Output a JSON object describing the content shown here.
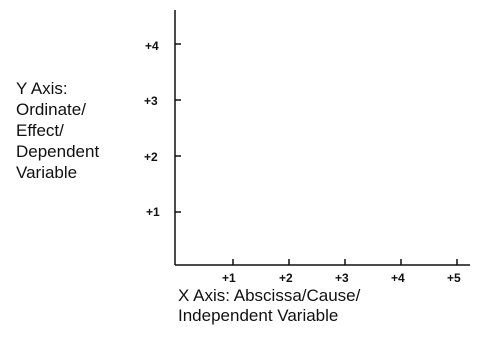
{
  "y_axis": {
    "label_lines": [
      "Y Axis:",
      "Ordinate/",
      "Effect/",
      "Dependent",
      "Variable"
    ],
    "ticks": [
      "+1",
      "+2",
      "+3",
      "+4"
    ]
  },
  "x_axis": {
    "label_lines": [
      "X Axis: Abscissa/Cause/",
      "Independent Variable"
    ],
    "ticks": [
      "+1",
      "+2",
      "+3",
      "+4",
      "+5"
    ]
  }
}
